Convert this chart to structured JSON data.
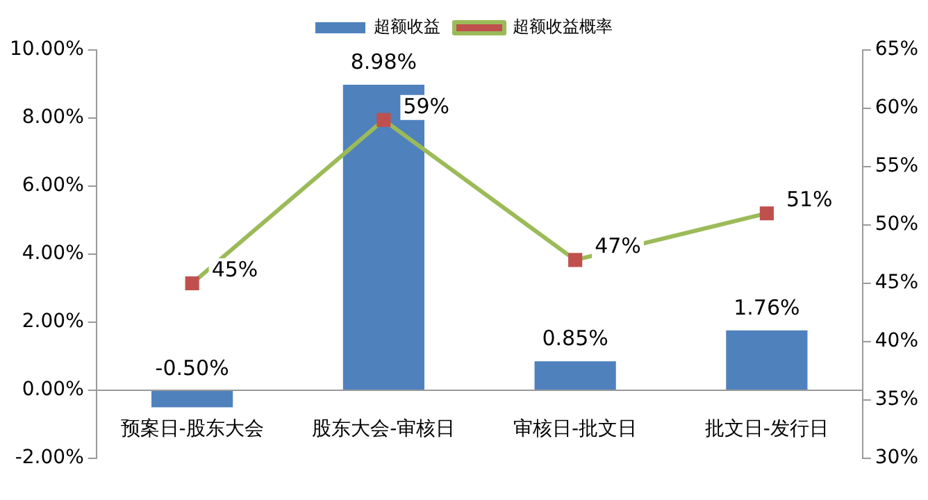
{
  "chart_data": {
    "type": "bar",
    "categories": [
      "预案日-股东大会",
      "股东大会-审核日",
      "审核日-批文日",
      "批文日-发行日"
    ],
    "series": [
      {
        "name": "超额收益",
        "color": "#4f81bd",
        "values": [
          -0.5,
          8.98,
          0.85,
          1.76
        ],
        "value_labels": [
          "-0.50%",
          "8.98%",
          "0.85%",
          "1.76%"
        ]
      },
      {
        "name": "超额收益概率",
        "type": "line",
        "axis": "y2",
        "color": "#9bbb59",
        "colors": [
          "#c0504d",
          "#c0504d",
          "#c0504d",
          "#c0504d"
        ],
        "marker": "square",
        "values": [
          45,
          59,
          47,
          51
        ],
        "value_labels": [
          "45%",
          "59%",
          "47%",
          "51%"
        ]
      }
    ],
    "ylim": [
      -2,
      10
    ],
    "yticks": [
      {
        "value": -2,
        "label": "-2.00%"
      },
      {
        "value": 0,
        "label": "0.00%"
      },
      {
        "value": 2,
        "label": "2.00%"
      },
      {
        "value": 4,
        "label": "4.00%"
      },
      {
        "value": 6,
        "label": "6.00%"
      },
      {
        "value": 8,
        "label": "8.00%"
      },
      {
        "value": 10,
        "label": "10.00%"
      }
    ],
    "y2lim": [
      30,
      65
    ],
    "y2ticks": [
      {
        "value": 30,
        "label": "30%"
      },
      {
        "value": 35,
        "label": "35%"
      },
      {
        "value": 40,
        "label": "40%"
      },
      {
        "value": 45,
        "label": "45%"
      },
      {
        "value": 50,
        "label": "50%"
      },
      {
        "value": 55,
        "label": "55%"
      },
      {
        "value": 60,
        "label": "60%"
      },
      {
        "value": 65,
        "label": "65%"
      }
    ],
    "grid": false,
    "legend": "top"
  }
}
